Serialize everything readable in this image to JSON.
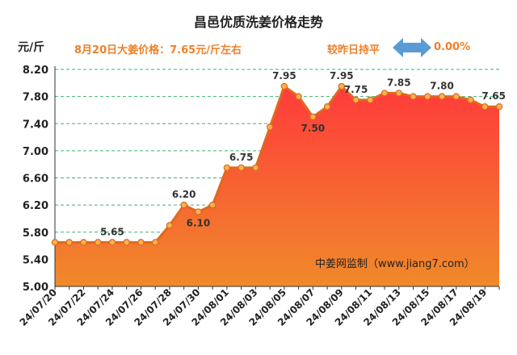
{
  "header": {
    "title": "昌邑优质洗姜价格走势",
    "unit": "元/斤",
    "today_price": "8月20日大姜价格：7.65元/斤左右",
    "compare_label": "较昨日持平",
    "change_value": "0.00%"
  },
  "watermark": "中姜网监制（www.jiang7.com）",
  "colors": {
    "line": "#e06820",
    "marker_fill": "#f6b350",
    "area_top": "#ff3b3b",
    "area_bottom": "#f08a2a",
    "text_orange": "#f0802a",
    "arrow": "#5b9bd5",
    "grid": "#3cb371"
  },
  "chart_data": {
    "type": "area",
    "title": "昌邑优质洗姜价格走势",
    "ylabel": "元/斤",
    "ylim": [
      5.0,
      8.2
    ],
    "yticks": [
      "5.00",
      "5.40",
      "5.80",
      "6.20",
      "6.60",
      "7.00",
      "7.40",
      "7.80",
      "8.20"
    ],
    "grid": true,
    "x": [
      "24/07/20",
      "24/07/21",
      "24/07/22",
      "24/07/23",
      "24/07/24",
      "24/07/25",
      "24/07/26",
      "24/07/27",
      "24/07/28",
      "24/07/29",
      "24/07/30",
      "24/07/31",
      "24/08/01",
      "24/08/02",
      "24/08/03",
      "24/08/04",
      "24/08/05",
      "24/08/06",
      "24/08/07",
      "24/08/08",
      "24/08/09",
      "24/08/10",
      "24/08/11",
      "24/08/12",
      "24/08/13",
      "24/08/14",
      "24/08/15",
      "24/08/16",
      "24/08/17",
      "24/08/18",
      "24/08/19",
      "24/08/20"
    ],
    "xtick_labels": [
      "24/07/20",
      "24/07/22",
      "24/07/24",
      "24/07/26",
      "24/07/28",
      "24/07/30",
      "24/08/01",
      "24/08/03",
      "24/08/05",
      "24/08/07",
      "24/08/09",
      "24/08/11",
      "24/08/13",
      "24/08/15",
      "24/08/17",
      "24/08/19"
    ],
    "values": [
      5.65,
      5.65,
      5.65,
      5.65,
      5.65,
      5.65,
      5.65,
      5.65,
      5.9,
      6.2,
      6.1,
      6.2,
      6.75,
      6.75,
      6.75,
      7.35,
      7.95,
      7.8,
      7.5,
      7.65,
      7.95,
      7.75,
      7.75,
      7.85,
      7.85,
      7.8,
      7.8,
      7.8,
      7.8,
      7.75,
      7.65,
      7.65
    ],
    "data_labels": [
      {
        "x": "24/07/24",
        "text": "5.65"
      },
      {
        "x": "24/07/29",
        "text": "6.20"
      },
      {
        "x": "24/07/30",
        "text": "6.10"
      },
      {
        "x": "24/08/02",
        "text": "6.75"
      },
      {
        "x": "24/08/05",
        "text": "7.95"
      },
      {
        "x": "24/08/07",
        "text": "7.50"
      },
      {
        "x": "24/08/09",
        "text": "7.95"
      },
      {
        "x": "24/08/10",
        "text": "7.75"
      },
      {
        "x": "24/08/13",
        "text": "7.85"
      },
      {
        "x": "24/08/16",
        "text": "7.80"
      },
      {
        "x": "24/08/20",
        "text": "7.65"
      }
    ]
  }
}
